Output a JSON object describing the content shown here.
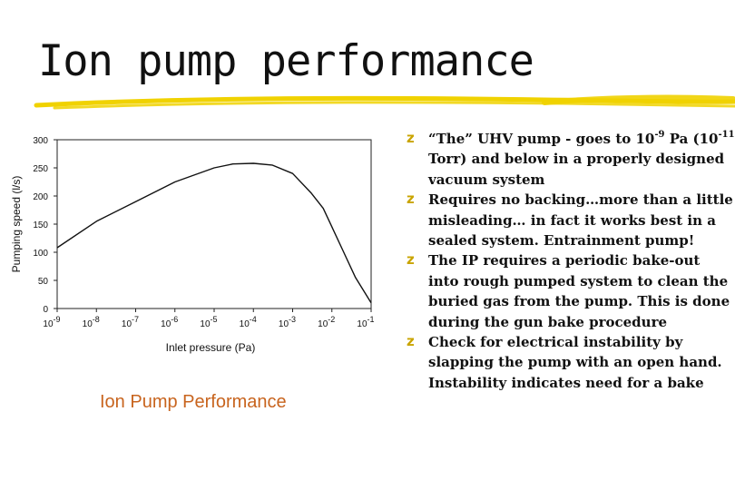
{
  "title": "Ion pump performance",
  "colors": {
    "underline": "#f0d200",
    "caption": "#c8641e",
    "bullet": "#c9a400"
  },
  "bullet_icon": "z-glyph-bullet",
  "bullet_glyph": "z",
  "caption": "Ion Pump Performance",
  "bullets": {
    "b1": {
      "text_a": "“The” UHV pump - goes to 10",
      "sup_a": "-9",
      "text_b": " Pa (10",
      "sup_b": "-11",
      "text_c": " Torr) and below in a properly designed vacuum system"
    },
    "b2": {
      "text": "Requires no backing…more than a little misleading… in fact it works best in a sealed system.  Entrainment pump!"
    },
    "b3": {
      "text": "The IP requires a periodic bake-out into rough pumped system  to clean the buried gas from the pump. This is done during the gun bake procedure"
    },
    "b4": {
      "text": "Check for electrical instability by slapping the pump with an open hand. Instability indicates need for a bake"
    }
  },
  "chart_data": {
    "type": "line",
    "xlabel": "Inlet pressure (Pa)",
    "ylabel": "Pumping speed (l/s)",
    "x_scale": "log",
    "xlim": [
      1e-09,
      0.1
    ],
    "ylim": [
      0,
      300
    ],
    "x_ticks": [
      {
        "value": 1e-09,
        "base": "10",
        "exp": "-9"
      },
      {
        "value": 1e-08,
        "base": "10",
        "exp": "-8"
      },
      {
        "value": 1e-07,
        "base": "10",
        "exp": "-7"
      },
      {
        "value": 1e-06,
        "base": "10",
        "exp": "-6"
      },
      {
        "value": 1e-05,
        "base": "10",
        "exp": "-5"
      },
      {
        "value": 0.0001,
        "base": "10",
        "exp": "-4"
      },
      {
        "value": 0.001,
        "base": "10",
        "exp": "-3"
      },
      {
        "value": 0.01,
        "base": "10",
        "exp": "-2"
      },
      {
        "value": 0.1,
        "base": "10",
        "exp": "-1"
      }
    ],
    "y_ticks": [
      0,
      50,
      100,
      150,
      200,
      250,
      300
    ],
    "grid": false,
    "series": [
      {
        "x": [
          1e-09,
          1e-08,
          1e-07,
          1e-06,
          1e-05,
          3e-05,
          0.0001,
          0.0003,
          0.001,
          0.003,
          0.006,
          0.01,
          0.02,
          0.04,
          0.1
        ],
        "y": [
          108,
          155,
          190,
          225,
          250,
          257,
          258,
          255,
          240,
          205,
          178,
          145,
          100,
          55,
          10
        ]
      }
    ]
  }
}
